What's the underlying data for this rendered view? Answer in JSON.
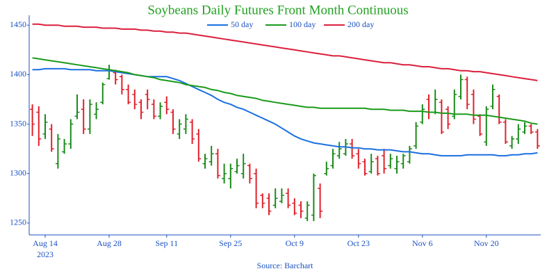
{
  "chart_data": {
    "type": "ohlc",
    "title": "Soybeans Daily Futures Front Month Continuous",
    "source": "Source: Barchart",
    "x_year": "2023",
    "categories": [
      null,
      null,
      "Aug 14",
      null,
      null,
      null,
      null,
      null,
      null,
      null,
      null,
      null,
      "Aug 28",
      null,
      null,
      null,
      null,
      null,
      null,
      null,
      null,
      "Sep 11",
      null,
      null,
      null,
      null,
      null,
      null,
      null,
      null,
      null,
      "Sep 25",
      null,
      null,
      null,
      null,
      null,
      null,
      null,
      null,
      null,
      "Oct 9",
      null,
      null,
      null,
      null,
      null,
      null,
      null,
      null,
      null,
      "Oct 23",
      null,
      null,
      null,
      null,
      null,
      null,
      null,
      null,
      null,
      "Nov 6",
      null,
      null,
      null,
      null,
      null,
      null,
      null,
      null,
      null,
      "Nov 20",
      null,
      null,
      null,
      null,
      null,
      null,
      null,
      null
    ],
    "ohlc": {
      "up_color": "#1a8a1a",
      "down_color": "#e0202a",
      "open": [
        1365,
        1362,
        1340,
        1345,
        1310,
        1322,
        1330,
        1358,
        1365,
        1345,
        1360,
        1372,
        1396,
        1402,
        1398,
        1385,
        1380,
        1372,
        1380,
        1370,
        1358,
        1372,
        1362,
        1340,
        1345,
        1352,
        1340,
        1310,
        1312,
        1320,
        1295,
        1295,
        1302,
        1300,
        1308,
        1300,
        1278,
        1275,
        1268,
        1272,
        1280,
        1270,
        1268,
        1255,
        1258,
        1285,
        1300,
        1308,
        1318,
        1320,
        1330,
        1320,
        1312,
        1302,
        1315,
        1318,
        1308,
        1305,
        1310,
        1312,
        1328,
        1352,
        1375,
        1362,
        1372,
        1365,
        1358,
        1378,
        1395,
        1380,
        1358,
        1332,
        1368,
        1378,
        1352,
        1328,
        1335,
        1342,
        1348,
        1342
      ],
      "high": [
        1370,
        1368,
        1360,
        1350,
        1340,
        1335,
        1355,
        1380,
        1375,
        1375,
        1372,
        1392,
        1410,
        1405,
        1400,
        1390,
        1385,
        1375,
        1385,
        1375,
        1372,
        1378,
        1365,
        1355,
        1360,
        1355,
        1345,
        1320,
        1328,
        1325,
        1310,
        1310,
        1315,
        1320,
        1310,
        1305,
        1280,
        1280,
        1285,
        1285,
        1285,
        1275,
        1272,
        1272,
        1300,
        1290,
        1312,
        1325,
        1332,
        1335,
        1335,
        1325,
        1315,
        1320,
        1318,
        1325,
        1320,
        1318,
        1320,
        1328,
        1352,
        1370,
        1380,
        1385,
        1375,
        1368,
        1385,
        1400,
        1398,
        1385,
        1360,
        1368,
        1390,
        1380,
        1355,
        1338,
        1350,
        1352,
        1350,
        1345
      ],
      "low": [
        1338,
        1328,
        1335,
        1322,
        1305,
        1320,
        1325,
        1355,
        1340,
        1340,
        1355,
        1370,
        1395,
        1390,
        1380,
        1370,
        1365,
        1355,
        1365,
        1355,
        1355,
        1360,
        1340,
        1335,
        1340,
        1330,
        1312,
        1305,
        1308,
        1295,
        1290,
        1285,
        1300,
        1295,
        1290,
        1265,
        1265,
        1258,
        1265,
        1270,
        1265,
        1258,
        1255,
        1252,
        1252,
        1255,
        1298,
        1305,
        1315,
        1318,
        1315,
        1305,
        1298,
        1300,
        1298,
        1300,
        1305,
        1300,
        1305,
        1310,
        1325,
        1350,
        1355,
        1360,
        1340,
        1345,
        1355,
        1375,
        1365,
        1350,
        1338,
        1328,
        1365,
        1350,
        1330,
        1325,
        1330,
        1340,
        1340,
        1325
      ],
      "close": [
        1350,
        1335,
        1352,
        1325,
        1335,
        1330,
        1350,
        1362,
        1345,
        1370,
        1365,
        1390,
        1405,
        1395,
        1385,
        1372,
        1370,
        1362,
        1375,
        1358,
        1368,
        1365,
        1345,
        1350,
        1355,
        1335,
        1315,
        1315,
        1320,
        1298,
        1300,
        1305,
        1308,
        1310,
        1295,
        1270,
        1270,
        1262,
        1275,
        1278,
        1268,
        1260,
        1262,
        1268,
        1298,
        1262,
        1305,
        1320,
        1325,
        1330,
        1318,
        1310,
        1300,
        1312,
        1300,
        1305,
        1315,
        1312,
        1318,
        1325,
        1348,
        1365,
        1362,
        1375,
        1342,
        1350,
        1380,
        1395,
        1370,
        1355,
        1340,
        1365,
        1385,
        1352,
        1332,
        1335,
        1345,
        1348,
        1342,
        1328
      ]
    },
    "series": [
      {
        "name": "50 day",
        "color": "#1a6fe0",
        "values": [
          1405,
          1405,
          1406,
          1406,
          1406,
          1406,
          1405,
          1405,
          1405,
          1405,
          1404,
          1404,
          1404,
          1403,
          1402,
          1401,
          1400,
          1399,
          1398,
          1398,
          1398,
          1398,
          1396,
          1394,
          1391,
          1388,
          1385,
          1382,
          1379,
          1375,
          1372,
          1370,
          1367,
          1365,
          1362,
          1359,
          1356,
          1353,
          1350,
          1346,
          1342,
          1338,
          1335,
          1333,
          1331,
          1330,
          1329,
          1328,
          1327,
          1327,
          1326,
          1326,
          1325,
          1325,
          1324,
          1324,
          1324,
          1323,
          1322,
          1322,
          1321,
          1320,
          1320,
          1319,
          1318,
          1318,
          1318,
          1318,
          1319,
          1319,
          1319,
          1319,
          1319,
          1318,
          1318,
          1319,
          1319,
          1320,
          1320,
          1321
        ]
      },
      {
        "name": "100 day",
        "color": "#1a9a1a",
        "values": [
          1417,
          1416,
          1415,
          1414,
          1413,
          1412,
          1411,
          1410,
          1409,
          1408,
          1407,
          1406,
          1405,
          1404,
          1403,
          1402,
          1400,
          1399,
          1398,
          1397,
          1395,
          1394,
          1393,
          1392,
          1390,
          1389,
          1388,
          1387,
          1385,
          1384,
          1382,
          1381,
          1379,
          1378,
          1377,
          1376,
          1374,
          1373,
          1372,
          1371,
          1370,
          1369,
          1368,
          1367,
          1367,
          1366,
          1366,
          1366,
          1366,
          1366,
          1366,
          1366,
          1366,
          1365,
          1365,
          1365,
          1364,
          1364,
          1364,
          1363,
          1363,
          1363,
          1362,
          1362,
          1361,
          1361,
          1360,
          1360,
          1360,
          1359,
          1359,
          1359,
          1358,
          1357,
          1356,
          1355,
          1354,
          1353,
          1351,
          1350
        ]
      },
      {
        "name": "200 day",
        "color": "#dc1e3c",
        "values": [
          1451,
          1451,
          1450,
          1450,
          1450,
          1449,
          1449,
          1449,
          1448,
          1448,
          1448,
          1447,
          1447,
          1447,
          1446,
          1446,
          1446,
          1445,
          1445,
          1444,
          1444,
          1443,
          1443,
          1442,
          1442,
          1441,
          1440,
          1439,
          1438,
          1437,
          1436,
          1435,
          1434,
          1433,
          1432,
          1431,
          1430,
          1429,
          1428,
          1427,
          1426,
          1425,
          1424,
          1423,
          1422,
          1421,
          1420,
          1419,
          1419,
          1418,
          1417,
          1416,
          1415,
          1414,
          1413,
          1412,
          1412,
          1411,
          1410,
          1410,
          1409,
          1408,
          1408,
          1407,
          1406,
          1406,
          1405,
          1404,
          1404,
          1403,
          1403,
          1402,
          1401,
          1400,
          1399,
          1398,
          1397,
          1396,
          1395,
          1394
        ]
      }
    ],
    "ylim": [
      1238,
      1460
    ],
    "yticks": [
      1250,
      1300,
      1350,
      1400,
      1450
    ],
    "grid": false,
    "legend": "top"
  }
}
